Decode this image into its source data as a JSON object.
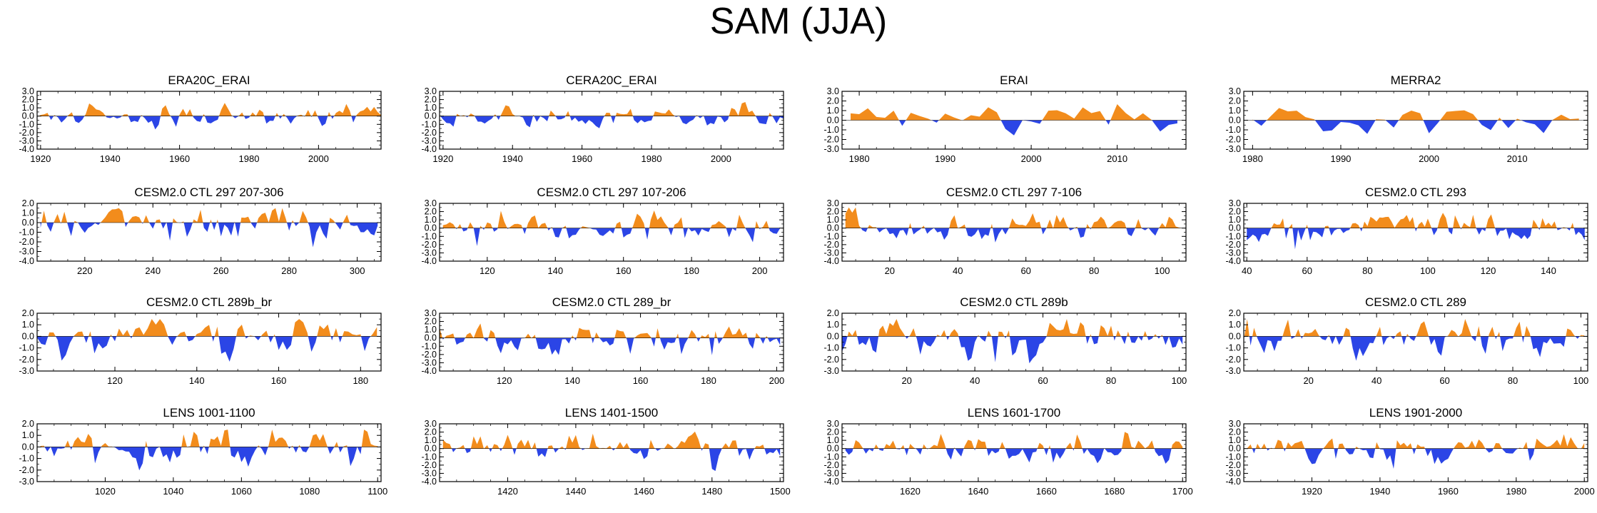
{
  "figure": {
    "title": "SAM (JJA)",
    "colors": {
      "positive": "#f28c1c",
      "negative": "#2b45e6",
      "axis": "#000000"
    }
  },
  "chart_data": [
    {
      "type": "area",
      "title": "ERA20C_ERAI",
      "xlim": [
        1919,
        2018
      ],
      "ylim": [
        -4.0,
        3.0
      ],
      "yticks": [
        -4.0,
        -3.0,
        -2.0,
        -1.0,
        0.0,
        1.0,
        2.0,
        3.0
      ],
      "xticks": [
        1920,
        1940,
        1960,
        1980,
        2000
      ],
      "x_start": 1919,
      "x_end": 2018,
      "seed": 11,
      "scale": 0.8,
      "values": []
    },
    {
      "type": "area",
      "title": "CERA20C_ERAI",
      "xlim": [
        1919,
        2018
      ],
      "ylim": [
        -4.0,
        3.0
      ],
      "yticks": [
        -4.0,
        -3.0,
        -2.0,
        -1.0,
        0.0,
        1.0,
        2.0,
        3.0
      ],
      "xticks": [
        1920,
        1940,
        1960,
        1980,
        2000
      ],
      "x_start": 1919,
      "x_end": 2018,
      "seed": 23,
      "scale": 0.8,
      "values": []
    },
    {
      "type": "area",
      "title": "ERAI",
      "xlim": [
        1978,
        2018
      ],
      "ylim": [
        -3.0,
        3.0
      ],
      "yticks": [
        -3.0,
        -2.0,
        -1.0,
        0.0,
        1.0,
        2.0,
        3.0
      ],
      "xticks": [
        1980,
        1990,
        2000,
        2010
      ],
      "x_start": 1979,
      "x_end": 2017,
      "seed": 37,
      "scale": 1.0,
      "values": []
    },
    {
      "type": "area",
      "title": "MERRA2",
      "xlim": [
        1979,
        2018
      ],
      "ylim": [
        -3.0,
        3.0
      ],
      "yticks": [
        -3.0,
        -2.0,
        -1.0,
        0.0,
        1.0,
        2.0,
        3.0
      ],
      "xticks": [
        1980,
        1990,
        2000,
        2010
      ],
      "x_start": 1980,
      "x_end": 2017,
      "seed": 41,
      "scale": 1.0,
      "values": []
    },
    {
      "type": "area",
      "title": "CESM2.0 CTL 297 207-306",
      "xlim": [
        206,
        307
      ],
      "ylim": [
        -4.0,
        2.0
      ],
      "yticks": [
        -4.0,
        -3.0,
        -2.0,
        -1.0,
        0.0,
        1.0,
        2.0
      ],
      "xticks": [
        220,
        240,
        260,
        280,
        300
      ],
      "x_start": 207,
      "x_end": 306,
      "seed": 53,
      "scale": 1.0,
      "values": []
    },
    {
      "type": "area",
      "title": "CESM2.0 CTL 297 107-206",
      "xlim": [
        106,
        207
      ],
      "ylim": [
        -4.0,
        3.0
      ],
      "yticks": [
        -4.0,
        -3.0,
        -2.0,
        -1.0,
        0.0,
        1.0,
        2.0,
        3.0
      ],
      "xticks": [
        120,
        140,
        160,
        180,
        200
      ],
      "x_start": 107,
      "x_end": 206,
      "seed": 67,
      "scale": 1.0,
      "values": []
    },
    {
      "type": "area",
      "title": "CESM2.0 CTL 297 7-106",
      "xlim": [
        6,
        107
      ],
      "ylim": [
        -4.0,
        3.0
      ],
      "yticks": [
        -4.0,
        -3.0,
        -2.0,
        -1.0,
        0.0,
        1.0,
        2.0,
        3.0
      ],
      "xticks": [
        20,
        40,
        60,
        80,
        100
      ],
      "x_start": 7,
      "x_end": 106,
      "seed": 71,
      "scale": 1.0,
      "values": []
    },
    {
      "type": "area",
      "title": "CESM2.0 CTL 293",
      "xlim": [
        39,
        153
      ],
      "ylim": [
        -4.0,
        3.0
      ],
      "yticks": [
        -4.0,
        -3.0,
        -2.0,
        -1.0,
        0.0,
        1.0,
        2.0,
        3.0
      ],
      "xticks": [
        40,
        60,
        80,
        100,
        120,
        140
      ],
      "x_start": 40,
      "x_end": 152,
      "seed": 83,
      "scale": 1.0,
      "values": []
    },
    {
      "type": "area",
      "title": "CESM2.0 CTL 289b_br",
      "xlim": [
        101,
        185
      ],
      "ylim": [
        -3.0,
        2.0
      ],
      "yticks": [
        -3.0,
        -2.0,
        -1.0,
        0.0,
        1.0,
        2.0
      ],
      "xticks": [
        120,
        140,
        160,
        180
      ],
      "x_start": 101,
      "x_end": 184,
      "seed": 97,
      "scale": 1.0,
      "values": []
    },
    {
      "type": "area",
      "title": "CESM2.0 CTL 289_br",
      "xlim": [
        101,
        202
      ],
      "ylim": [
        -4.0,
        3.0
      ],
      "yticks": [
        -4.0,
        -3.0,
        -2.0,
        -1.0,
        0.0,
        1.0,
        2.0,
        3.0
      ],
      "xticks": [
        120,
        140,
        160,
        180,
        200
      ],
      "x_start": 101,
      "x_end": 201,
      "seed": 101,
      "scale": 1.0,
      "values": []
    },
    {
      "type": "area",
      "title": "CESM2.0 CTL 289b",
      "xlim": [
        1,
        102
      ],
      "ylim": [
        -3.0,
        2.0
      ],
      "yticks": [
        -3.0,
        -2.0,
        -1.0,
        0.0,
        1.0,
        2.0
      ],
      "xticks": [
        20,
        40,
        60,
        80,
        100
      ],
      "x_start": 1,
      "x_end": 101,
      "seed": 113,
      "scale": 1.0,
      "values": []
    },
    {
      "type": "area",
      "title": "CESM2.0 CTL 289",
      "xlim": [
        1,
        102
      ],
      "ylim": [
        -3.0,
        2.0
      ],
      "yticks": [
        -3.0,
        -2.0,
        -1.0,
        0.0,
        1.0,
        2.0
      ],
      "xticks": [
        20,
        40,
        60,
        80,
        100
      ],
      "x_start": 1,
      "x_end": 101,
      "seed": 127,
      "scale": 1.0,
      "values": []
    },
    {
      "type": "area",
      "title": "LENS 1001-1100",
      "xlim": [
        1000,
        1101
      ],
      "ylim": [
        -3.0,
        2.0
      ],
      "yticks": [
        -3.0,
        -2.0,
        -1.0,
        0.0,
        1.0,
        2.0
      ],
      "xticks": [
        1020,
        1040,
        1060,
        1080,
        1100
      ],
      "x_start": 1001,
      "x_end": 1100,
      "seed": 131,
      "scale": 1.0,
      "values": []
    },
    {
      "type": "area",
      "title": "LENS 1401-1500",
      "xlim": [
        1400,
        1501
      ],
      "ylim": [
        -4.0,
        3.0
      ],
      "yticks": [
        -4.0,
        -3.0,
        -2.0,
        -1.0,
        0.0,
        1.0,
        2.0,
        3.0
      ],
      "xticks": [
        1420,
        1440,
        1460,
        1480,
        1500
      ],
      "x_start": 1401,
      "x_end": 1500,
      "seed": 149,
      "scale": 1.0,
      "values": []
    },
    {
      "type": "area",
      "title": "LENS 1601-1700",
      "xlim": [
        1600,
        1701
      ],
      "ylim": [
        -4.0,
        3.0
      ],
      "yticks": [
        -4.0,
        -3.0,
        -2.0,
        -1.0,
        0.0,
        1.0,
        2.0,
        3.0
      ],
      "xticks": [
        1620,
        1640,
        1660,
        1680,
        1700
      ],
      "x_start": 1601,
      "x_end": 1700,
      "seed": 157,
      "scale": 1.0,
      "values": []
    },
    {
      "type": "area",
      "title": "LENS 1901-2000",
      "xlim": [
        1900,
        2001
      ],
      "ylim": [
        -4.0,
        3.0
      ],
      "yticks": [
        -4.0,
        -3.0,
        -2.0,
        -1.0,
        0.0,
        1.0,
        2.0,
        3.0
      ],
      "xticks": [
        1920,
        1940,
        1960,
        1980,
        2000
      ],
      "x_start": 1901,
      "x_end": 2000,
      "seed": 163,
      "scale": 1.0,
      "values": []
    }
  ]
}
